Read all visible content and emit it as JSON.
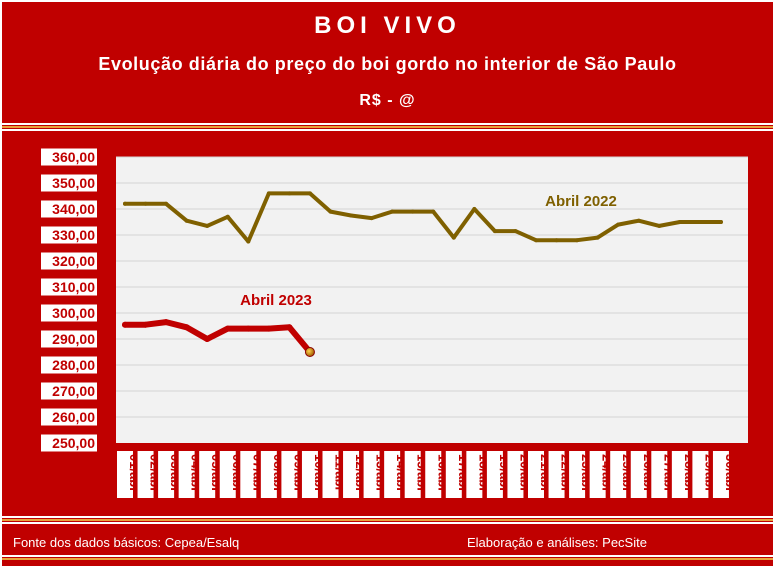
{
  "header": {
    "title": "BOI VIVO",
    "subtitle": "Evolução diária do preço do boi gordo no interior de São Paulo",
    "unit": "R$  -  @"
  },
  "footer": {
    "source": "Fonte dos dados básicos: Cepea/Esalq",
    "credit": "Elaboração e análises: PecSite"
  },
  "colors": {
    "background": "#c00000",
    "plot_area": "#f2f2f2",
    "series_2022": "#7f6000",
    "series_2023": "#c00000",
    "stripe": "#e8a33d"
  },
  "chart_data": {
    "type": "line",
    "title": "BOI VIVO",
    "subtitle": "Evolução diária do preço do boi gordo no interior de São Paulo",
    "ylabel": "R$  -  @",
    "ylim": [
      250,
      360
    ],
    "yticks": [
      "250,00",
      "260,00",
      "270,00",
      "280,00",
      "290,00",
      "300,00",
      "310,00",
      "320,00",
      "330,00",
      "340,00",
      "350,00",
      "360,00"
    ],
    "grid": true,
    "categories": [
      "01/abr",
      "02/abr",
      "03/abr",
      "04/abr",
      "05/abr",
      "06/abr",
      "07/abr",
      "08/abr",
      "09/abr",
      "10/abr",
      "11/abr",
      "12/abr",
      "13/abr",
      "14/abr",
      "15/abr",
      "16/abr",
      "17/abr",
      "18/abr",
      "19/abr",
      "20/abr",
      "21/abr",
      "22/abr",
      "23/abr",
      "24/abr",
      "25/abr",
      "26/abr",
      "27/abr",
      "28/abr",
      "29/abr",
      "30/abr"
    ],
    "series": [
      {
        "name": "Abril 2022",
        "x": [
          1,
          2,
          3,
          4,
          5,
          6,
          7,
          8,
          9,
          10,
          11,
          12,
          13,
          14,
          15,
          16,
          17,
          18,
          19,
          20,
          21,
          22,
          23,
          24,
          25,
          26,
          27,
          28,
          29,
          30
        ],
        "values": [
          342,
          342,
          342,
          335.5,
          333.5,
          337,
          327.5,
          346,
          346,
          346,
          339,
          337.5,
          336.5,
          339,
          339,
          339,
          329,
          340,
          331.5,
          331.5,
          328,
          328,
          328,
          329,
          334,
          335.5,
          333.5,
          335,
          335,
          335
        ]
      },
      {
        "name": "Abril 2023",
        "x": [
          1,
          2,
          3,
          4,
          5,
          6,
          7,
          8,
          9,
          10
        ],
        "values": [
          295.5,
          295.5,
          296.5,
          294.5,
          290,
          294,
          294,
          294,
          294.5,
          285
        ]
      }
    ]
  }
}
